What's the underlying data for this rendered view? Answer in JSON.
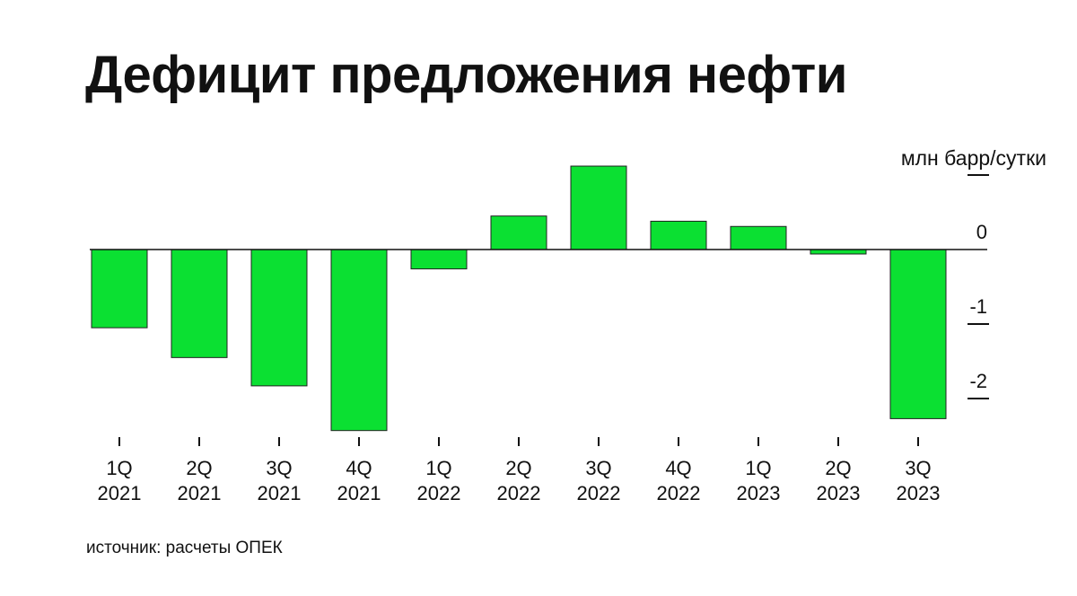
{
  "title": "Дефицит предложения нефти",
  "unit_label": "млн барр/сутки",
  "source_label": "источник: расчеты ОПЕК",
  "colors": {
    "bar": "#0be032",
    "bar_stroke": "#222222",
    "axis": "#111111"
  },
  "chart_data": {
    "type": "bar",
    "title": "Дефицит предложения нефти",
    "ylabel": "млн барр/сутки",
    "categories": [
      [
        "1Q",
        "2021"
      ],
      [
        "2Q",
        "2021"
      ],
      [
        "3Q",
        "2021"
      ],
      [
        "4Q",
        "2021"
      ],
      [
        "1Q",
        "2022"
      ],
      [
        "2Q",
        "2022"
      ],
      [
        "3Q",
        "2022"
      ],
      [
        "4Q",
        "2022"
      ],
      [
        "1Q",
        "2023"
      ],
      [
        "2Q",
        "2023"
      ],
      [
        "3Q",
        "2023"
      ]
    ],
    "values": [
      -1.05,
      -1.45,
      -1.83,
      -2.43,
      -0.26,
      0.45,
      1.12,
      0.38,
      0.31,
      -0.06,
      -2.27
    ],
    "ylim": [
      -2.45,
      1.15
    ],
    "yticks": [
      {
        "value": 1,
        "label": ""
      },
      {
        "value": 0,
        "label": "0"
      },
      {
        "value": -1,
        "label": "-1"
      },
      {
        "value": -2,
        "label": "-2"
      }
    ],
    "grid": false,
    "legend": "none"
  }
}
